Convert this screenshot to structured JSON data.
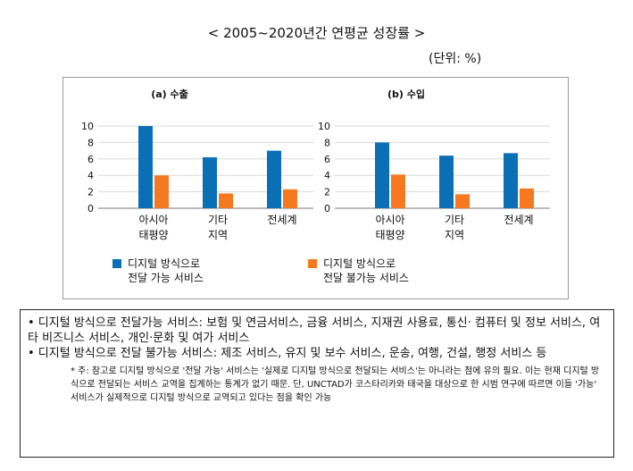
{
  "page": {
    "title": "< 2005~2020년간 연평균 성장률 >",
    "unit": "(단위: %)"
  },
  "chart_data": [
    {
      "type": "bar",
      "title": "(a) 수출",
      "categories": [
        "아시아\n태평양",
        "기타\n지역",
        "전세계"
      ],
      "series": [
        {
          "name": "디지털 방식으로\n전달 가능 서비스",
          "values": [
            10.0,
            6.2,
            7.0
          ],
          "color": "#0a6fb5"
        },
        {
          "name": "디지털 방식으로\n전달 불가능 서비스",
          "values": [
            4.0,
            1.8,
            2.3
          ],
          "color": "#f47920"
        }
      ],
      "yticks": [
        0,
        2,
        4,
        6,
        8,
        10
      ],
      "ylim": [
        0,
        10.5
      ],
      "grid": true
    },
    {
      "type": "bar",
      "title": "(b) 수입",
      "categories": [
        "아시아\n태평양",
        "기타\n지역",
        "전세계"
      ],
      "series": [
        {
          "name": "디지털 방식으로\n전달 가능 서비스",
          "values": [
            8.0,
            6.4,
            6.7
          ],
          "color": "#0a6fb5"
        },
        {
          "name": "디지털 방식으로\n전달 불가능 서비스",
          "values": [
            4.1,
            1.7,
            2.4
          ],
          "color": "#f47920"
        }
      ],
      "yticks": [
        0,
        2,
        4,
        6,
        8,
        10
      ],
      "ylim": [
        0,
        10.5
      ],
      "grid": true
    }
  ],
  "legend": [
    {
      "label": "디지털 방식으로\n전달 가능 서비스",
      "color": "#0a6fb5"
    },
    {
      "label": "디지털 방식으로\n전달 불가능 서비스",
      "color": "#f47920"
    }
  ],
  "notes": {
    "main1": "• 디지털 방식으로 전달가능 서비스: 보험 및 연금서비스, 금융 서비스, 지재권 사용료, 통신· 컴퓨터 및 정보 서비스, 여타 비즈니스 서비스, 개인·문화 및 여가 서비스",
    "main2": "• 디지털 방식으로 전달 불가능 서비스: 제조 서비스, 유지 및 보수 서비스, 운송, 여행, 건설, 행정 서비스 등",
    "footnote": "* 주: 참고로 디지털 방식으로 '전달 가능' 서비스는 '실제로 디지털 방식으로 전달되는 서비스'는 아니라는 점에 유의 필요. 이는 현재 디지털 방식으로 전달되는 서비스 교역을 집계하는 통계가 없기 때문. 단, UNCTAD가 코스타리카와 태국을 대상으로 한 시범 연구에 따르면 이들 '가능' 서비스가 실제적으로 디지털 방식으로 교역되고 있다는 점을 확인 가능"
  }
}
